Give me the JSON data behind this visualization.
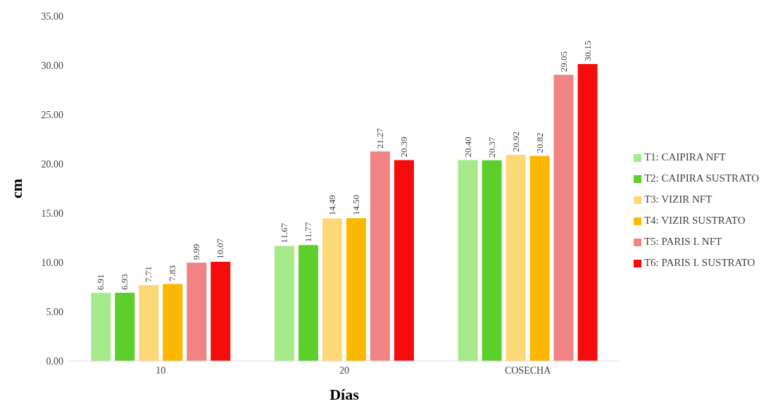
{
  "chart_data": {
    "type": "bar",
    "xlabel": "Días",
    "ylabel": "cm",
    "categories": [
      "10",
      "20",
      "COSECHA"
    ],
    "series": [
      {
        "name": "T1: CAIPIRA NFT",
        "color": "#a6e98a",
        "values": [
          6.91,
          11.67,
          20.4
        ],
        "value_labels": [
          "6.91",
          "11.67",
          "20.40"
        ]
      },
      {
        "name": "T2: CAIPIRA SUSTRATO",
        "color": "#5ccf2a",
        "values": [
          6.93,
          11.77,
          20.37
        ],
        "value_labels": [
          "6.93",
          "11.77",
          "20.37"
        ]
      },
      {
        "name": "T3: VIZIR NFT",
        "color": "#fcd877",
        "values": [
          7.71,
          14.49,
          20.92
        ],
        "value_labels": [
          "7.71",
          "14.49",
          "20.92"
        ]
      },
      {
        "name": "T4: VIZIR SUSTRATO",
        "color": "#fbb800",
        "values": [
          7.83,
          14.5,
          20.82
        ],
        "value_labels": [
          "7.83",
          "14.50",
          "20.82"
        ]
      },
      {
        "name": "T5: PARIS I. NFT",
        "color": "#f08383",
        "values": [
          9.99,
          21.27,
          29.05
        ],
        "value_labels": [
          "9.99",
          "21.27",
          "29.05"
        ]
      },
      {
        "name": "T6: PARIS I. SUSTRATO",
        "color": "#f50c0c",
        "values": [
          10.07,
          20.39,
          30.15
        ],
        "value_labels": [
          "10.07",
          "20.39",
          "30.15"
        ]
      }
    ],
    "ylim": [
      0,
      35
    ],
    "yticks": [
      {
        "value": 0,
        "label": "0.00"
      },
      {
        "value": 5,
        "label": "5.00"
      },
      {
        "value": 10,
        "label": "10.00"
      },
      {
        "value": 15,
        "label": "15.00"
      },
      {
        "value": 20,
        "label": "20.00"
      },
      {
        "value": 25,
        "label": "25.00"
      },
      {
        "value": 30,
        "label": "30.00"
      },
      {
        "value": 35,
        "label": "35.00"
      }
    ],
    "grid": false,
    "legend": "right"
  }
}
